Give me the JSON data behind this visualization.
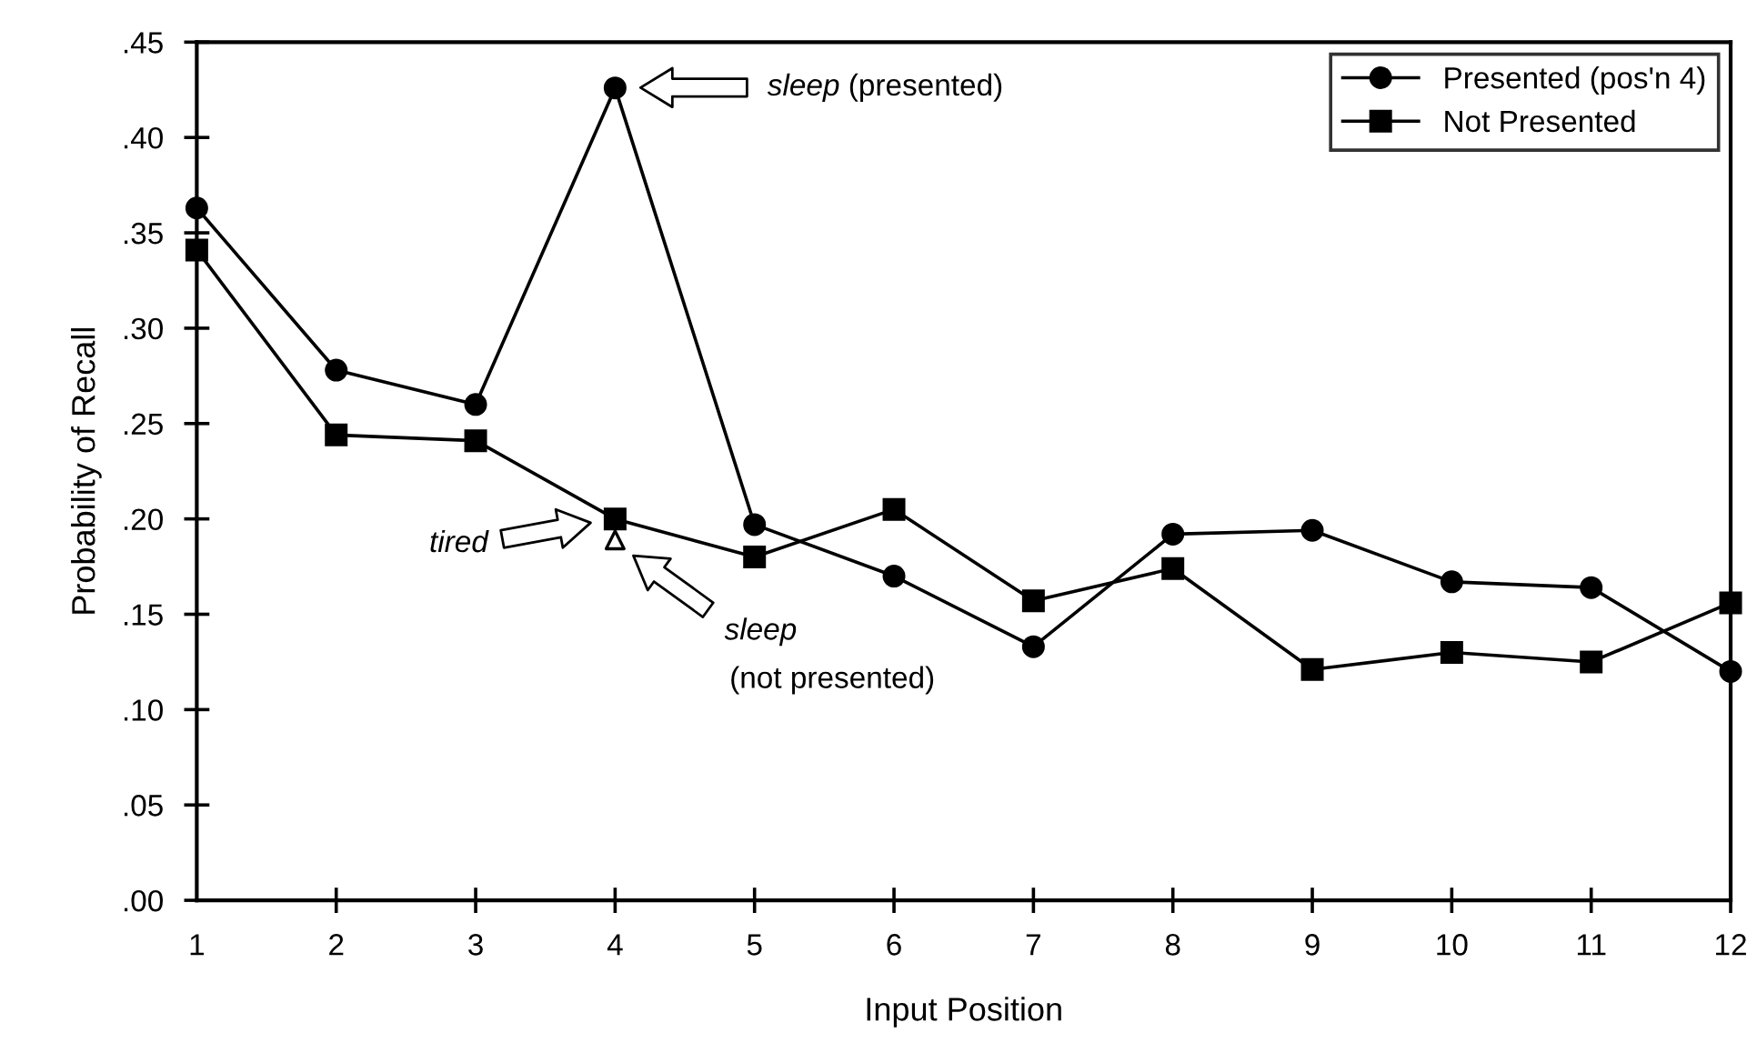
{
  "chart_data": {
    "type": "line",
    "xlabel": "Input Position",
    "ylabel": "Probability of Recall",
    "x": [
      1,
      2,
      3,
      4,
      5,
      6,
      7,
      8,
      9,
      10,
      11,
      12
    ],
    "series": [
      {
        "name": "Presented (pos'n 4)",
        "color": "#000000",
        "marker": "circle",
        "values": [
          0.363,
          0.278,
          0.26,
          0.426,
          0.197,
          0.17,
          0.133,
          0.192,
          0.194,
          0.167,
          0.164,
          0.12
        ]
      },
      {
        "name": "Not Presented",
        "color": "#000000",
        "marker": "square",
        "values": [
          0.341,
          0.244,
          0.241,
          0.2,
          0.18,
          0.205,
          0.157,
          0.174,
          0.121,
          0.13,
          0.125,
          0.156
        ]
      },
      {
        "type": "scatter",
        "color": "#000000",
        "marker": "triangle",
        "x": [
          4
        ],
        "values": [
          0.189
        ]
      }
    ],
    "xlim": [
      1,
      12
    ],
    "xticks": [
      1,
      2,
      3,
      4,
      5,
      6,
      7,
      8,
      9,
      10,
      11,
      12
    ],
    "ylim": [
      0,
      0.45
    ],
    "yticks": [
      {
        "value": 0,
        "label": ".00"
      },
      {
        "value": 0.05,
        "label": ".05"
      },
      {
        "value": 0.1,
        "label": ".10"
      },
      {
        "value": 0.15,
        "label": ".15"
      },
      {
        "value": 0.2,
        "label": ".20"
      },
      {
        "value": 0.25,
        "label": ".25"
      },
      {
        "value": 0.3,
        "label": ".30"
      },
      {
        "value": 0.35,
        "label": ".35"
      },
      {
        "value": 0.4,
        "label": ".40"
      },
      {
        "value": 0.45,
        "label": ".45"
      }
    ],
    "annotations": [
      "sleep (presented)",
      "tired",
      "sleep\n(not presented)"
    ],
    "legend": "top right",
    "grid": false,
    "line_style": "solid"
  }
}
